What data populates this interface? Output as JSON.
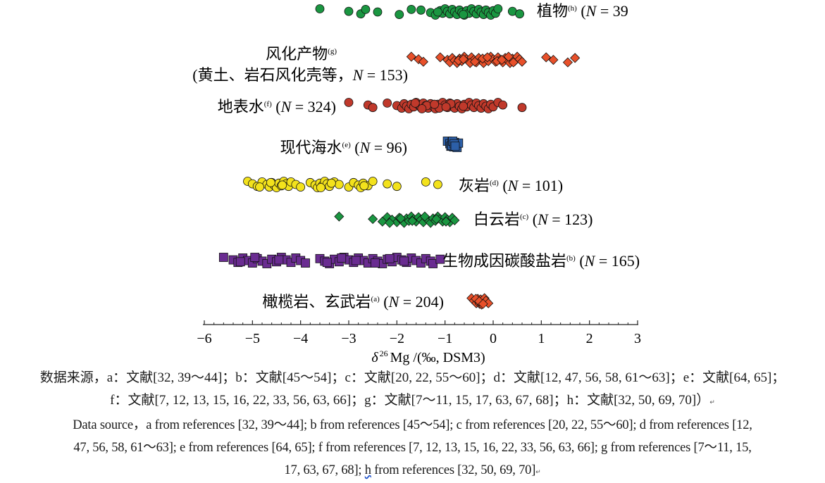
{
  "chart_data": {
    "type": "scatter",
    "xlabel_greek": "δ",
    "xlabel_sup": "26",
    "xlabel_rest": "Mg /(‰, DSM3)",
    "xlim": [
      -6,
      3
    ],
    "x_ticks": [
      -6,
      -5,
      -4,
      -3,
      -2,
      -1,
      0,
      1,
      2,
      3
    ],
    "x_tick_labels": [
      "−6",
      "−5",
      "−4",
      "−3",
      "−2",
      "−1",
      "0",
      "1",
      "2",
      "3"
    ],
    "grid": false,
    "categories": [
      {
        "label": "植物",
        "sup": "(h)",
        "n_prefix": "N",
        "n_text": " = 39",
        "marker": "circle",
        "color": "#1a9641",
        "label_side": "right",
        "values": [
          -3.6,
          -3.0,
          -2.75,
          -2.65,
          -2.4,
          -1.95,
          -1.5,
          -1.3,
          -1.2,
          -1.1,
          -1.05,
          -1.0,
          -0.95,
          -0.9,
          -0.85,
          -0.8,
          -0.75,
          -0.7,
          -0.65,
          -0.6,
          -0.55,
          -0.5,
          -0.45,
          -0.4,
          -0.35,
          -0.3,
          -0.25,
          -0.2,
          -0.15,
          -0.1,
          -0.05,
          0.0,
          0.05,
          0.1,
          0.4,
          0.55,
          -1.7,
          -1.15,
          -0.62
        ]
      },
      {
        "label": "风化产物",
        "sup": "(g)",
        "sublabel": "(黄土、岩石风化壳等，",
        "n_prefix": "N",
        "n_text": " = 153)",
        "marker": "diamond",
        "color": "#e8502a",
        "label_side": "left",
        "values": [
          -1.7,
          -1.55,
          -1.45,
          -1.1,
          -0.95,
          -0.9,
          -0.85,
          -0.8,
          -0.75,
          -0.7,
          -0.65,
          -0.6,
          -0.55,
          -0.5,
          -0.45,
          -0.4,
          -0.35,
          -0.3,
          -0.25,
          -0.2,
          -0.15,
          -0.1,
          -0.05,
          0.0,
          0.05,
          0.1,
          0.15,
          0.2,
          0.25,
          0.3,
          0.35,
          0.4,
          0.45,
          0.5,
          0.55,
          0.6,
          1.1,
          1.25,
          1.55,
          1.7,
          -0.72,
          -0.48,
          -0.22,
          0.08,
          0.32,
          -0.62,
          -0.38,
          -0.12,
          0.18,
          0.42
        ]
      },
      {
        "label": "地表水",
        "sup": "(f)",
        "n_prefix": "N",
        "n_text": " = 324)",
        "marker": "circle",
        "color": "#c0392b",
        "label_side": "left",
        "values": [
          -3.0,
          -2.6,
          -2.5,
          -2.2,
          -2.0,
          -1.9,
          -1.85,
          -1.8,
          -1.75,
          -1.7,
          -1.65,
          -1.6,
          -1.55,
          -1.5,
          -1.45,
          -1.4,
          -1.35,
          -1.3,
          -1.25,
          -1.2,
          -1.15,
          -1.1,
          -1.05,
          -1.0,
          -0.95,
          -0.9,
          -0.85,
          -0.8,
          -0.75,
          -0.7,
          -0.65,
          -0.6,
          -0.55,
          -0.5,
          -0.45,
          -0.4,
          -0.35,
          -0.3,
          -0.25,
          -0.2,
          -0.15,
          -0.1,
          -0.05,
          0.0,
          0.1,
          0.2,
          0.6,
          -1.62,
          -1.38,
          -1.12,
          -0.88,
          -0.62,
          -1.48,
          -1.22,
          -0.98
        ]
      },
      {
        "label": "现代海水",
        "sup": "(e)",
        "n_prefix": "N",
        "n_text": " = 96)",
        "marker": "square",
        "color": "#2c5fa8",
        "label_side": "left",
        "values": [
          -0.95,
          -0.9,
          -0.88,
          -0.85,
          -0.83,
          -0.82,
          -0.8,
          -0.78,
          -0.75,
          -0.72,
          -0.86,
          -0.84,
          -0.81,
          -0.79
        ]
      },
      {
        "label": "灰岩",
        "sup": "(d)",
        "n_prefix": "N",
        "n_text": " = 101)",
        "marker": "circle",
        "color": "#f3e21c",
        "label_side": "right",
        "values": [
          -5.1,
          -5.0,
          -4.9,
          -4.8,
          -4.7,
          -4.65,
          -4.6,
          -4.55,
          -4.5,
          -4.45,
          -4.4,
          -4.35,
          -4.3,
          -4.25,
          -4.2,
          -4.1,
          -4.0,
          -3.8,
          -3.7,
          -3.65,
          -3.6,
          -3.55,
          -3.5,
          -3.45,
          -3.4,
          -3.3,
          -3.2,
          -3.0,
          -2.9,
          -2.8,
          -2.75,
          -2.7,
          -2.6,
          -2.5,
          -2.2,
          -2.0,
          -1.4,
          -1.15,
          -4.85,
          -4.62,
          -4.38,
          -3.58,
          -3.36,
          -2.68
        ]
      },
      {
        "label": "白云岩",
        "sup": "(c)",
        "n_prefix": "N",
        "n_text": " = 123)",
        "marker": "diamond",
        "color": "#1a9641",
        "label_side": "right",
        "values": [
          -3.2,
          -2.5,
          -2.3,
          -2.2,
          -2.1,
          -2.0,
          -1.95,
          -1.9,
          -1.85,
          -1.8,
          -1.75,
          -1.7,
          -1.65,
          -1.6,
          -1.55,
          -1.5,
          -1.45,
          -1.4,
          -1.35,
          -1.3,
          -1.25,
          -1.2,
          -1.15,
          -1.1,
          -1.05,
          -1.0,
          -0.95,
          -0.9,
          -0.85,
          -0.8,
          -2.15,
          -1.92,
          -1.68,
          -1.42,
          -1.18,
          -0.98
        ]
      },
      {
        "label": "生物成因碳酸盐岩",
        "sup": "(b)",
        "n_prefix": "N",
        "n_text": " = 165)",
        "marker": "square",
        "color": "#6a2c91",
        "label_side": "right",
        "values": [
          -5.6,
          -5.4,
          -5.3,
          -5.2,
          -5.1,
          -5.0,
          -4.9,
          -4.8,
          -4.7,
          -4.6,
          -4.5,
          -4.4,
          -4.3,
          -4.2,
          -4.1,
          -4.0,
          -3.9,
          -3.6,
          -3.5,
          -3.4,
          -3.3,
          -3.2,
          -3.1,
          -3.0,
          -2.9,
          -2.8,
          -2.7,
          -2.6,
          -2.5,
          -2.4,
          -2.3,
          -2.2,
          -2.1,
          -2.0,
          -1.9,
          -1.8,
          -1.7,
          -1.6,
          -1.5,
          -1.4,
          -1.3,
          -1.25,
          -1.1,
          -5.25,
          -4.95,
          -4.45,
          -3.45,
          -3.15,
          -2.85,
          -2.45,
          -2.15,
          -1.85
        ]
      },
      {
        "label": "橄榄岩、玄武岩",
        "sup": "(a)",
        "n_prefix": "N",
        "n_text": " = 204)",
        "marker": "diamond",
        "color": "#e8502a",
        "label_side": "left",
        "values": [
          -0.45,
          -0.4,
          -0.35,
          -0.32,
          -0.3,
          -0.28,
          -0.26,
          -0.25,
          -0.24,
          -0.22,
          -0.2,
          -0.18,
          -0.15,
          -0.1,
          -0.36,
          -0.29,
          -0.21
        ]
      }
    ]
  },
  "caption": {
    "zh_line1": "数据来源，a：文献[32, 39～44]；b：文献[45～54]；c：文献[20, 22, 55～60]；d：文献[12, 47, 56, 58, 61～63]；e：文献[64, 65]；",
    "zh_line2": "f：文献[7, 12, 13, 15, 16, 22, 33, 56, 63, 66]；g：文献[7～11, 15, 17, 63, 67, 68]；h：文献[32, 50, 69, 70]）",
    "en_line1": "Data source，a from references [32, 39～44]; b from references [45～54]; c from references [20, 22, 55～60]; d from references [12,",
    "en_line2": "47, 56, 58, 61～63]; e from references [64, 65]; f from references [7, 12, 13, 15, 16, 22, 33, 56, 63, 66]; g from references [7～11, 15,",
    "en_line3_a": "17, 63, 67, 68];",
    "en_line3_b": "h",
    "en_line3_c": " from references [32, 50, 69, 70]"
  }
}
